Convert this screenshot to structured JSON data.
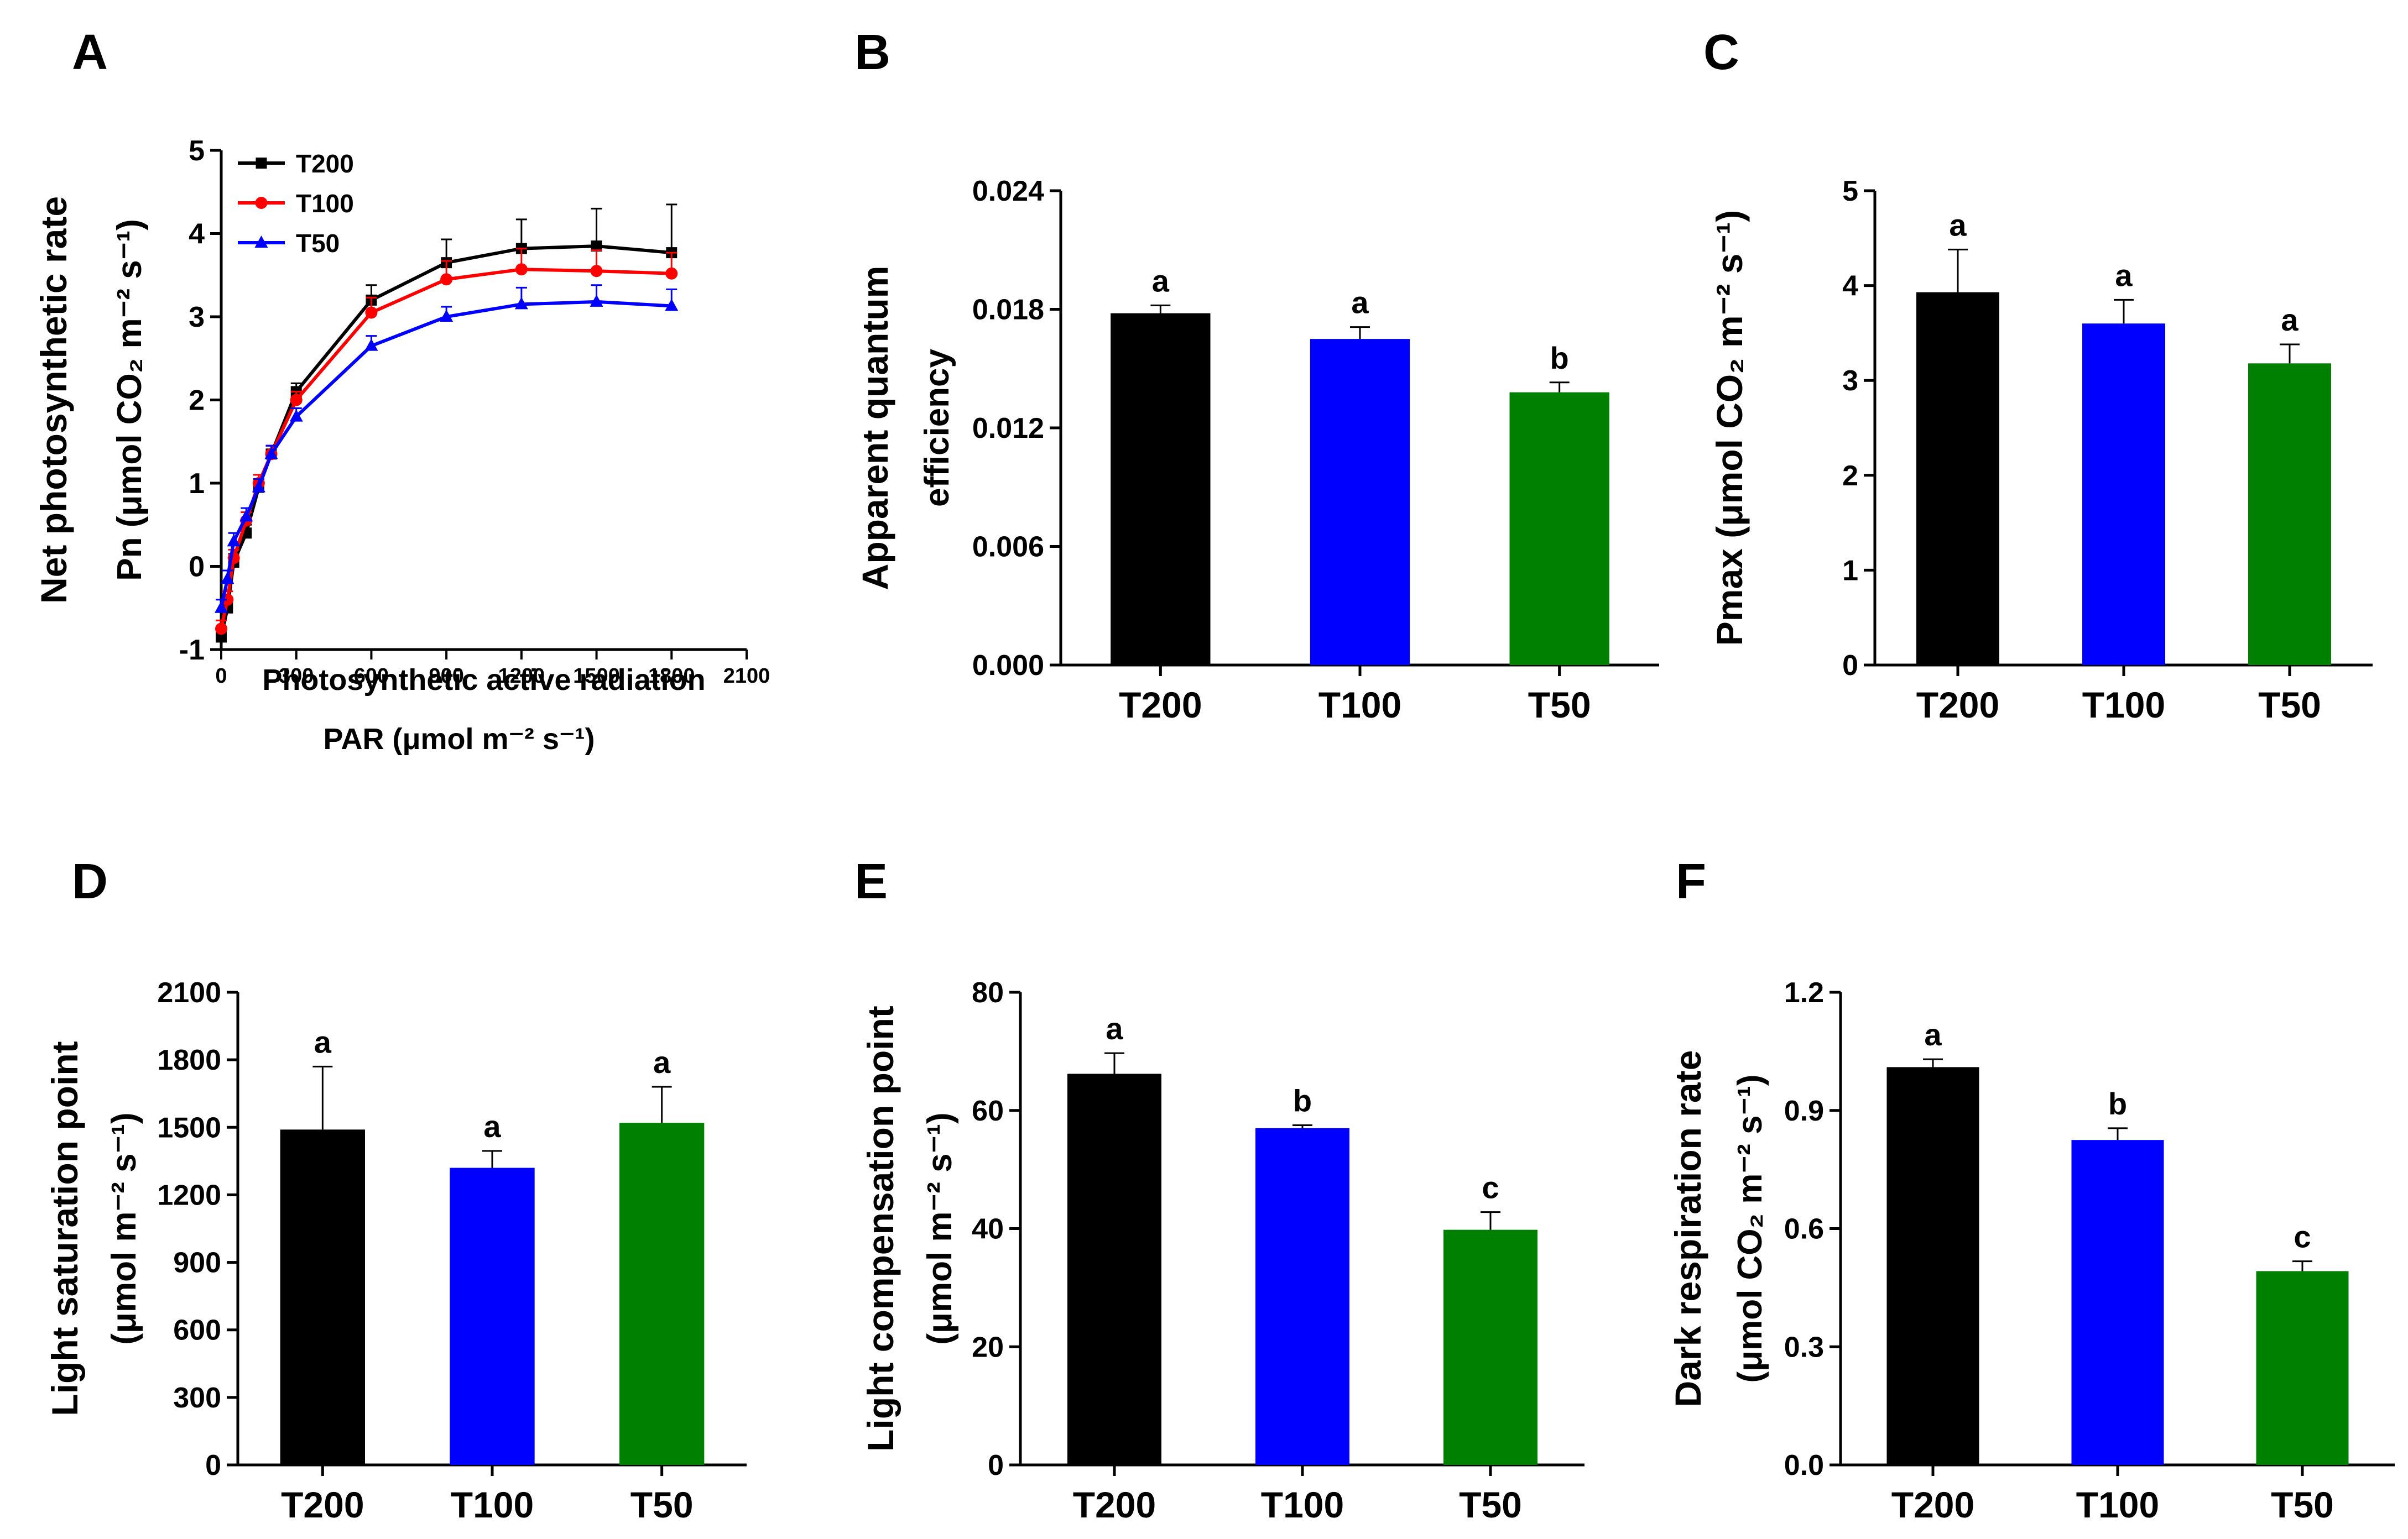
{
  "chart_data": [
    {
      "panel": "A",
      "type": "line",
      "ylabel_line1": "Net photosynthetic rate",
      "ylabel_line2": "Pn (μmol CO₂ m⁻² s⁻¹)",
      "xlabel_line1": "Photosynthetic active radiation",
      "xlabel_line2": "PAR (μmol m⁻² s⁻¹)",
      "xlim": [
        0,
        2100
      ],
      "ylim": [
        -1,
        5
      ],
      "xticks": [
        0,
        300,
        600,
        900,
        1200,
        1500,
        1800,
        2100
      ],
      "yticks": [
        -1,
        0,
        1,
        2,
        3,
        4,
        5
      ],
      "x": [
        0,
        25,
        50,
        100,
        150,
        200,
        300,
        600,
        900,
        1200,
        1500,
        1800
      ],
      "legend_position": "top-left",
      "series": [
        {
          "name": "T200",
          "color": "#000000",
          "marker": "square",
          "values": [
            -0.85,
            -0.5,
            0.05,
            0.4,
            0.95,
            1.35,
            2.1,
            3.2,
            3.65,
            3.82,
            3.85,
            3.77
          ],
          "errors": [
            0.1,
            0.1,
            0.1,
            0.1,
            0.1,
            0.1,
            0.1,
            0.18,
            0.28,
            0.35,
            0.45,
            0.58
          ]
        },
        {
          "name": "T100",
          "color": "#ff0000",
          "marker": "circle",
          "values": [
            -0.75,
            -0.4,
            0.1,
            0.55,
            1.0,
            1.35,
            2.0,
            3.05,
            3.45,
            3.57,
            3.55,
            3.52
          ],
          "errors": [
            0.1,
            0.1,
            0.1,
            0.1,
            0.1,
            0.1,
            0.1,
            0.18,
            0.22,
            0.25,
            0.25,
            0.25
          ]
        },
        {
          "name": "T50",
          "color": "#0000ff",
          "marker": "triangle",
          "values": [
            -0.5,
            -0.15,
            0.3,
            0.6,
            0.95,
            1.35,
            1.8,
            2.65,
            3.0,
            3.15,
            3.18,
            3.13
          ],
          "errors": [
            0.1,
            0.1,
            0.1,
            0.1,
            0.1,
            0.1,
            0.1,
            0.12,
            0.12,
            0.2,
            0.2,
            0.2
          ]
        }
      ]
    },
    {
      "panel": "B",
      "type": "bar",
      "ylabel_line1": "Apparent quantum",
      "ylabel_line2": "efficiency",
      "ylim": [
        0,
        0.024
      ],
      "yticks": [
        "0.000",
        "0.006",
        "0.012",
        "0.018",
        "0.024"
      ],
      "categories": [
        "T200",
        "T100",
        "T50"
      ],
      "values": [
        0.0178,
        0.0165,
        0.0138
      ],
      "errors": [
        0.0004,
        0.0006,
        0.0005
      ],
      "letters": [
        "a",
        "a",
        "b"
      ],
      "colors": [
        "#000000",
        "#0000ff",
        "#008000"
      ]
    },
    {
      "panel": "C",
      "type": "bar",
      "ylabel_line1": "Pmax (μmol CO₂ m⁻² s⁻¹)",
      "ylabel_line2": "",
      "ylim": [
        0,
        5
      ],
      "yticks": [
        "0",
        "1",
        "2",
        "3",
        "4",
        "5"
      ],
      "categories": [
        "T200",
        "T100",
        "T50"
      ],
      "values": [
        3.93,
        3.6,
        3.18
      ],
      "errors": [
        0.45,
        0.25,
        0.2
      ],
      "letters": [
        "a",
        "a",
        "a"
      ],
      "colors": [
        "#000000",
        "#0000ff",
        "#008000"
      ]
    },
    {
      "panel": "D",
      "type": "bar",
      "ylabel_line1": "Light saturation point",
      "ylabel_line2": "(μmol m⁻² s⁻¹)",
      "ylim": [
        0,
        2100
      ],
      "yticks": [
        "0",
        "300",
        "600",
        "900",
        "1200",
        "1500",
        "1800",
        "2100"
      ],
      "categories": [
        "T200",
        "T100",
        "T50"
      ],
      "values": [
        1490,
        1320,
        1520
      ],
      "errors": [
        280,
        75,
        160
      ],
      "letters": [
        "a",
        "a",
        "a"
      ],
      "colors": [
        "#000000",
        "#0000ff",
        "#008000"
      ]
    },
    {
      "panel": "E",
      "type": "bar",
      "ylabel_line1": "Light compensation point",
      "ylabel_line2": "(μmol m⁻² s⁻¹)",
      "ylim": [
        0,
        80
      ],
      "yticks": [
        "0",
        "20",
        "40",
        "60",
        "80"
      ],
      "categories": [
        "T200",
        "T100",
        "T50"
      ],
      "values": [
        66.2,
        57.0,
        39.8
      ],
      "errors": [
        3.5,
        0.5,
        3.0
      ],
      "letters": [
        "a",
        "b",
        "c"
      ],
      "colors": [
        "#000000",
        "#0000ff",
        "#008000"
      ]
    },
    {
      "panel": "F",
      "type": "bar",
      "ylabel_line1": "Dark respiration rate",
      "ylabel_line2": "(μmol CO₂ m⁻² s⁻¹)",
      "ylim": [
        0,
        1.2
      ],
      "yticks": [
        "0.0",
        "0.3",
        "0.6",
        "0.9",
        "1.2"
      ],
      "categories": [
        "T200",
        "T100",
        "T50"
      ],
      "values": [
        1.01,
        0.825,
        0.492
      ],
      "errors": [
        0.02,
        0.03,
        0.025
      ],
      "letters": [
        "a",
        "b",
        "c"
      ],
      "colors": [
        "#000000",
        "#0000ff",
        "#008000"
      ]
    }
  ]
}
